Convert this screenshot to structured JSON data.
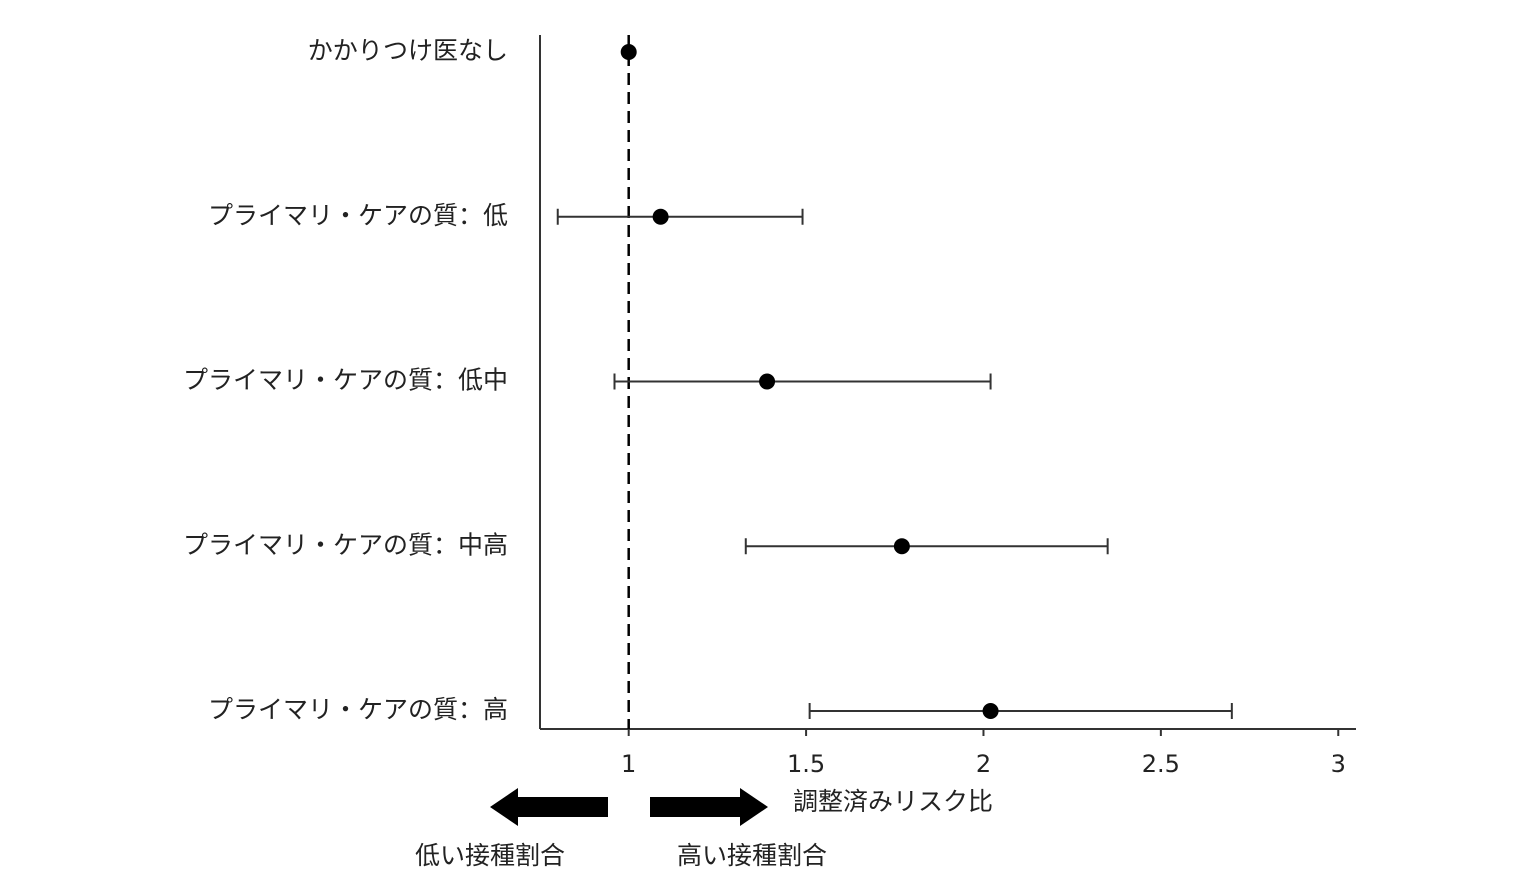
{
  "chart_data": {
    "type": "forest",
    "categories": [
      "かかりつけ医なし",
      "プライマリ・ケアの質：低",
      "プライマリ・ケアの質：低中",
      "プライマリ・ケアの質：中高",
      "プライマリ・ケアの質：高"
    ],
    "values": [
      1.0,
      1.09,
      1.39,
      1.77,
      2.02
    ],
    "lower": [
      null,
      0.8,
      0.96,
      1.33,
      1.51
    ],
    "upper": [
      null,
      1.49,
      2.02,
      2.35,
      2.7
    ],
    "color": "#000000",
    "reference_line": 1,
    "xlim": [
      0.75,
      3.05
    ],
    "xticks": [
      1,
      1.5,
      2,
      2.5,
      3
    ],
    "x_label": "調整済みリスク比",
    "left_arrow_label": "低い接種割合",
    "right_arrow_label": "高い接種割合"
  }
}
